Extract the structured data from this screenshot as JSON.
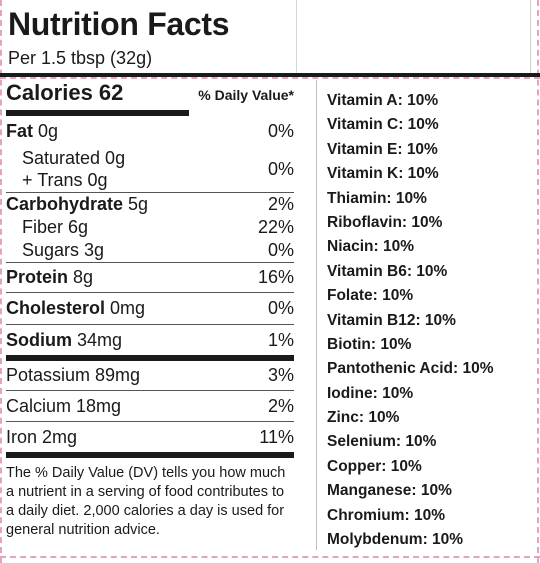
{
  "title": "Nutrition Facts",
  "serving": "Per 1.5 tbsp (32g)",
  "calories_label": "Calories 62",
  "daily_value_header": "% Daily Value*",
  "nutrients": [
    {
      "name": "Fat",
      "amount": "0g",
      "pct": "0%"
    },
    {
      "name": "Saturated 0g",
      "amount": "",
      "pct": "0%"
    },
    {
      "name": "+ Trans 0g",
      "amount": "",
      "pct": ""
    },
    {
      "name": "Carbohydrate",
      "amount": "5g",
      "pct": "2%"
    },
    {
      "name": "Fiber 6g",
      "amount": "",
      "pct": "22%"
    },
    {
      "name": "Sugars 3g",
      "amount": "",
      "pct": "0%"
    },
    {
      "name": "Protein",
      "amount": "8g",
      "pct": "16%"
    },
    {
      "name": "Cholesterol",
      "amount": "0mg",
      "pct": "0%"
    },
    {
      "name": "Sodium",
      "amount": "34mg",
      "pct": "1%"
    },
    {
      "name": "Potassium 89mg",
      "amount": "",
      "pct": "3%"
    },
    {
      "name": "Calcium 18mg",
      "amount": "",
      "pct": "2%"
    },
    {
      "name": "Iron 2mg",
      "amount": "",
      "pct": "11%"
    }
  ],
  "footnote": "The % Daily Value (DV) tells you how much a nutrient in a serving of food contributes to a daily diet. 2,000 calories a day is used for general nutrition advice.",
  "vitamins": [
    "Vitamin A: 10%",
    "Vitamin C: 10%",
    "Vitamin E: 10%",
    "Vitamin K: 10%",
    "Thiamin: 10%",
    "Riboflavin: 10%",
    "Niacin: 10%",
    "Vitamin B6: 10%",
    "Folate: 10%",
    "Vitamin B12: 10%",
    "Biotin: 10%",
    "Pantothenic Acid: 10%",
    "Iodine: 10%",
    "Zinc: 10%",
    "Selenium: 10%",
    "Copper: 10%",
    "Manganese: 10%",
    "Chromium: 10%",
    "Molybdenum: 10%"
  ]
}
